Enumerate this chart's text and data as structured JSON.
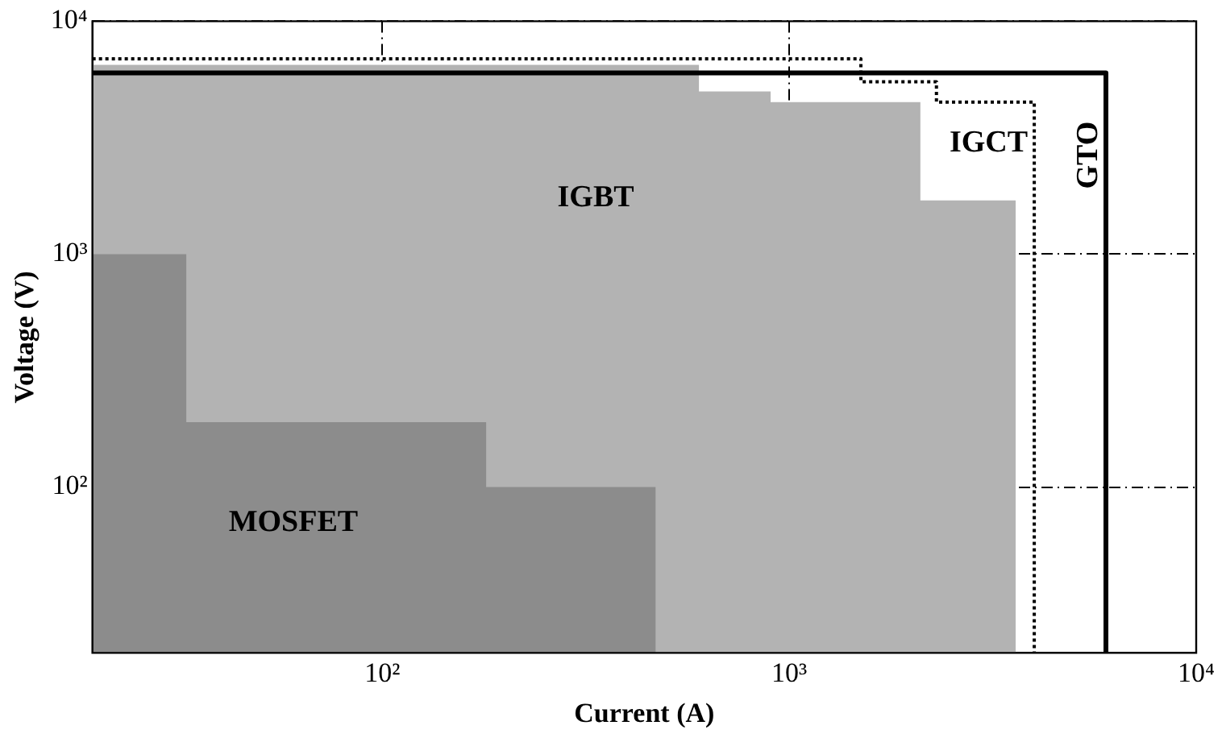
{
  "chart_data": {
    "type": "line",
    "xlabel": "Current (A)",
    "ylabel": "Voltage (V)",
    "log": "xy",
    "xlim": [
      19.4,
      10000
    ],
    "ylim": [
      19.4,
      10000
    ],
    "xticks": [
      {
        "value": 100,
        "label": "10²"
      },
      {
        "value": 1000,
        "label": "10³"
      },
      {
        "value": 10000,
        "label": "10⁴"
      }
    ],
    "yticks": [
      {
        "value": 100,
        "label": "10²"
      },
      {
        "value": 1000,
        "label": "10³"
      },
      {
        "value": 10000,
        "label": "10⁴"
      }
    ],
    "grid": true,
    "legend": false,
    "series": [
      {
        "name": "IGBT",
        "type": "area",
        "color": "#b3b3b3",
        "x": [
          19.4,
          600,
          600,
          900,
          900,
          2100,
          2100,
          3600,
          3600
        ],
        "values": [
          6500,
          6500,
          5000,
          5000,
          4500,
          4500,
          1700,
          1700,
          19.4
        ]
      },
      {
        "name": "MOSFET",
        "type": "area",
        "color": "#8c8c8c",
        "x": [
          19.4,
          33,
          33,
          180,
          180,
          470,
          470
        ],
        "values": [
          1000,
          1000,
          190,
          190,
          100,
          100,
          19.4
        ]
      },
      {
        "name": "IGCT",
        "type": "line",
        "color": "#000000",
        "line_style": "dotted",
        "x": [
          19.4,
          1500,
          1500,
          2300,
          2300,
          4000,
          4000
        ],
        "values": [
          6900,
          6900,
          5500,
          5500,
          4500,
          4500,
          19.4
        ]
      },
      {
        "name": "GTO",
        "type": "line",
        "color": "#000000",
        "line_style": "solid",
        "x": [
          19.4,
          6000,
          6000
        ],
        "values": [
          6000,
          6000,
          19.4
        ]
      }
    ]
  }
}
